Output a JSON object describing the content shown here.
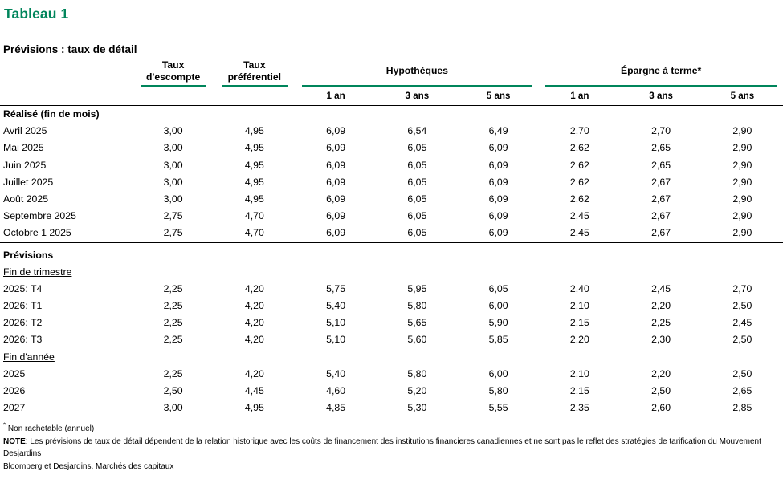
{
  "title": "Tableau 1",
  "subtitle": "Prévisions : taux de détail",
  "colors": {
    "accent_green": "#00855B",
    "text": "#000000",
    "rule_black": "#000000"
  },
  "table": {
    "header": {
      "discount": {
        "line1": "Taux",
        "line2": "d'escompte"
      },
      "prime": {
        "line1": "Taux",
        "line2": "préférentiel"
      },
      "mortgages": "Hypothèques",
      "term_savings": "Épargne à terme*",
      "sub_labels": [
        "1 an",
        "3 ans",
        "5 ans",
        "1 an",
        "3 ans",
        "5 ans"
      ]
    },
    "rows": [
      {
        "type": "section",
        "label": "Réalisé (fin de mois)"
      },
      {
        "type": "data",
        "label": "Avril 2025",
        "values": [
          "3,00",
          "4,95",
          "6,09",
          "6,54",
          "6,49",
          "2,70",
          "2,70",
          "2,90"
        ]
      },
      {
        "type": "data",
        "label": "Mai 2025",
        "values": [
          "3,00",
          "4,95",
          "6,09",
          "6,05",
          "6,09",
          "2,62",
          "2,65",
          "2,90"
        ]
      },
      {
        "type": "data",
        "label": "Juin 2025",
        "values": [
          "3,00",
          "4,95",
          "6,09",
          "6,05",
          "6,09",
          "2,62",
          "2,65",
          "2,90"
        ]
      },
      {
        "type": "data",
        "label": "Juillet 2025",
        "values": [
          "3,00",
          "4,95",
          "6,09",
          "6,05",
          "6,09",
          "2,62",
          "2,67",
          "2,90"
        ]
      },
      {
        "type": "data",
        "label": "Août 2025",
        "values": [
          "3,00",
          "4,95",
          "6,09",
          "6,05",
          "6,09",
          "2,62",
          "2,67",
          "2,90"
        ]
      },
      {
        "type": "data",
        "label": "Septembre 2025",
        "values": [
          "2,75",
          "4,70",
          "6,09",
          "6,05",
          "6,09",
          "2,45",
          "2,67",
          "2,90"
        ]
      },
      {
        "type": "data",
        "label": "Octobre 1 2025",
        "values": [
          "2,75",
          "4,70",
          "6,09",
          "6,05",
          "6,09",
          "2,45",
          "2,67",
          "2,90"
        ]
      },
      {
        "type": "section",
        "label": "Prévisions",
        "sep_above": true
      },
      {
        "type": "subheading",
        "label": "Fin de trimestre"
      },
      {
        "type": "data",
        "label": "2025: T4",
        "values": [
          "2,25",
          "4,20",
          "5,75",
          "5,95",
          "6,05",
          "2,40",
          "2,45",
          "2,70"
        ]
      },
      {
        "type": "data",
        "label": "2026: T1",
        "values": [
          "2,25",
          "4,20",
          "5,40",
          "5,80",
          "6,00",
          "2,10",
          "2,20",
          "2,50"
        ]
      },
      {
        "type": "data",
        "label": "2026: T2",
        "values": [
          "2,25",
          "4,20",
          "5,10",
          "5,65",
          "5,90",
          "2,15",
          "2,25",
          "2,45"
        ]
      },
      {
        "type": "data",
        "label": "2026: T3",
        "values": [
          "2,25",
          "4,20",
          "5,10",
          "5,60",
          "5,85",
          "2,20",
          "2,30",
          "2,50"
        ]
      },
      {
        "type": "subheading",
        "label": "Fin d'année"
      },
      {
        "type": "data",
        "label": "2025",
        "values": [
          "2,25",
          "4,20",
          "5,40",
          "5,80",
          "6,00",
          "2,10",
          "2,20",
          "2,50"
        ]
      },
      {
        "type": "data",
        "label": "2026",
        "values": [
          "2,50",
          "4,45",
          "4,60",
          "5,20",
          "5,80",
          "2,15",
          "2,50",
          "2,65"
        ]
      },
      {
        "type": "data",
        "label": "2027",
        "values": [
          "3,00",
          "4,95",
          "4,85",
          "5,30",
          "5,55",
          "2,35",
          "2,60",
          "2,85"
        ]
      }
    ]
  },
  "footnotes": {
    "star": {
      "marker": "*",
      "text": "Non rachetable (annuel)"
    },
    "note": {
      "label": "NOTE",
      "line1": ": Les prévisions de taux de détail dépendent de la relation historique avec les coûts de financement des institutions financieres canadiennes et ne sont pas le reflet des stratégies de tarification du Mouvement",
      "line2": "Desjardins"
    },
    "source": "Bloomberg et Desjardins, Marchés des capitaux"
  }
}
